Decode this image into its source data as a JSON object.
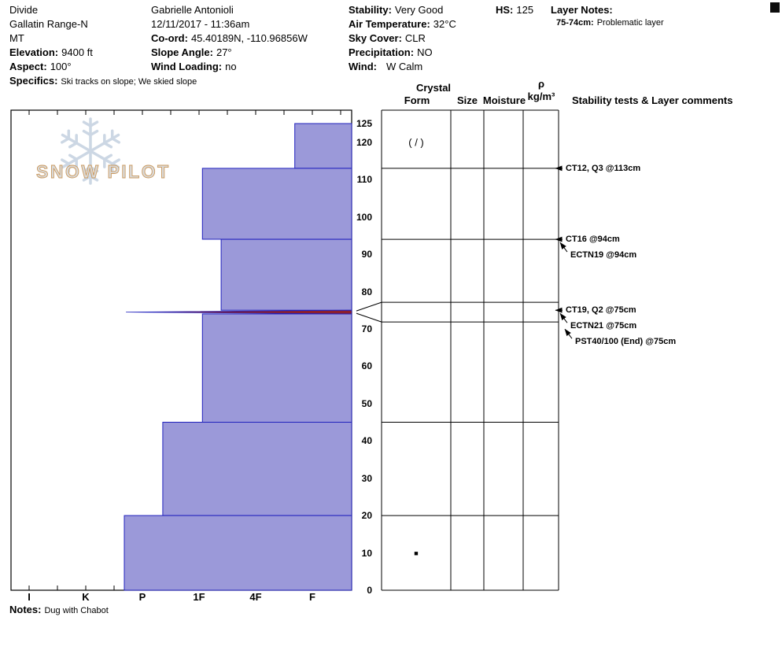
{
  "header": {
    "site": "Divide",
    "range": "Gallatin Range-N",
    "state": "MT",
    "elevation_label": "Elevation:",
    "elevation_value": "9400 ft",
    "aspect_label": "Aspect:",
    "aspect_value": "100°",
    "specifics_label": "Specifics:",
    "specifics_value": "Ski tracks on slope; We skied slope",
    "observer": "Gabrielle Antonioli",
    "datetime": "12/11/2017 - 11:36am",
    "coord_label": "Co-ord:",
    "coord_value": "45.40189N, -110.96856W",
    "slope_angle_label": "Slope Angle:",
    "slope_angle_value": "27°",
    "wind_loading_label": "Wind Loading:",
    "wind_loading_value": "no",
    "stability_label": "Stability:",
    "stability_value": "Very Good",
    "air_temp_label": "Air Temperature:",
    "air_temp_value": "32°C",
    "sky_cover_label": "Sky Cover:",
    "sky_cover_value": "CLR",
    "precipitation_label": "Precipitation:",
    "precipitation_value": "NO",
    "wind_label": "Wind:",
    "wind_value": "W Calm",
    "hs_label": "HS:",
    "hs_value": "125",
    "layer_notes_label": "Layer Notes:",
    "layer_notes": [
      {
        "depth": "75-74cm:",
        "text": "Problematic layer"
      }
    ]
  },
  "column_headers": {
    "crystal": "Crystal",
    "form": "Form",
    "size": "Size",
    "moisture": "Moisture",
    "rho": "ρ",
    "rho_unit": "kg/m³",
    "stability": "Stability tests & Layer comments"
  },
  "footer": {
    "notes_label": "Notes:",
    "notes_value": "Dug with Chabot"
  },
  "watermark": {
    "text": "SNOW PILOT"
  },
  "chart_data": {
    "type": "area",
    "subtype": "snow-hardness-profile",
    "title": "SnowPilot snow pit profile",
    "hs_cm": 125,
    "depth_unit": "cm",
    "depth_ticks": [
      0,
      10,
      20,
      30,
      40,
      50,
      60,
      70,
      80,
      90,
      100,
      110,
      120,
      125
    ],
    "hardness_ticks": [
      "I",
      "K",
      "P",
      "1F",
      "4F",
      "F"
    ],
    "layers": [
      {
        "top_cm": 125,
        "bottom_cm": 113,
        "hardness": "F+",
        "hardness_v": 4.69
      },
      {
        "top_cm": 113,
        "bottom_cm": 94,
        "hardness": "1F",
        "hardness_v": 3.06
      },
      {
        "top_cm": 94,
        "bottom_cm": 75,
        "hardness": "4F-1F",
        "hardness_v": 3.39
      },
      {
        "top_cm": 75,
        "bottom_cm": 74,
        "hardness": "P+",
        "hardness_v": 1.71,
        "problem_layer": true
      },
      {
        "top_cm": 74,
        "bottom_cm": 45,
        "hardness": "1F",
        "hardness_v": 3.06
      },
      {
        "top_cm": 45,
        "bottom_cm": 20,
        "hardness": "P-1F",
        "hardness_v": 2.36
      },
      {
        "top_cm": 20,
        "bottom_cm": 0,
        "hardness": "P+",
        "hardness_v": 1.68
      }
    ],
    "grain_symbols": [
      {
        "depth_cm": 120,
        "symbol": "( / )",
        "font_px": 13
      },
      {
        "depth_cm": 10,
        "symbol": "■",
        "font_px": 9
      }
    ],
    "stability_tests": [
      {
        "label": "CT12, Q3 @113cm",
        "depth_cm": 113
      },
      {
        "label": "CT16 @94cm",
        "depth_cm": 94
      },
      {
        "label": "ECTN19 @94cm",
        "depth_cm": 94
      },
      {
        "label": "CT19, Q2 @75cm",
        "depth_cm": 75
      },
      {
        "label": "ECTN21 @75cm",
        "depth_cm": 75
      },
      {
        "label": "PST40/100 (End) @75cm",
        "depth_cm": 75
      }
    ],
    "table_row_lines_cm": [
      113,
      94,
      45,
      20
    ],
    "thin_layer_row": {
      "top_cm": 75,
      "bottom_cm": 74
    },
    "colors": {
      "bar_fill": "#9b99d9",
      "bar_stroke": "#2021bd",
      "problem_fill": "#8b1f2f",
      "axis": "#000000"
    }
  }
}
